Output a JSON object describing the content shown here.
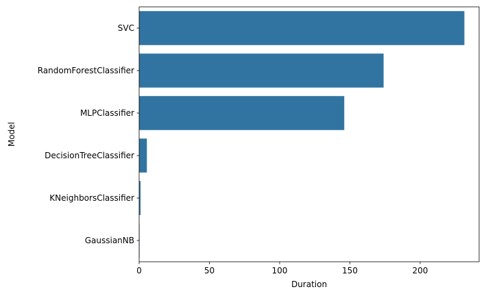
{
  "chart_data": {
    "type": "bar",
    "orientation": "horizontal",
    "categories": [
      "SVC",
      "RandomForestClassifier",
      "MLPClassifier",
      "DecisionTreeClassifier",
      "KNeighborsClassifier",
      "GaussianNB"
    ],
    "values": [
      231.5,
      174,
      146,
      5.5,
      1,
      0.2
    ],
    "xlabel": "Duration",
    "ylabel": "Model",
    "xlim": [
      0,
      242
    ],
    "xticks": [
      0,
      50,
      100,
      150,
      200
    ],
    "grid": false,
    "legend": "none",
    "bar_color": "#3274a1"
  }
}
